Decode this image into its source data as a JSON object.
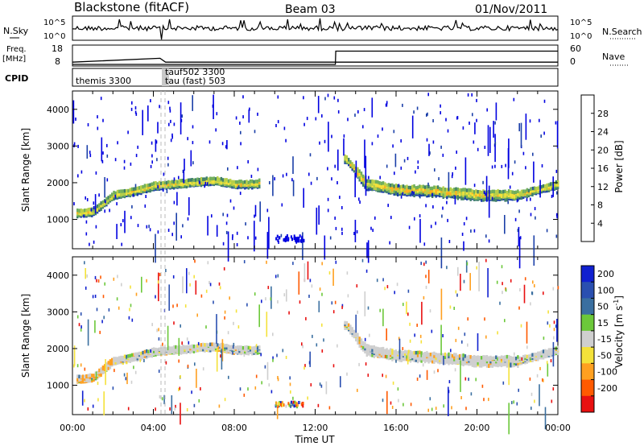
{
  "header": {
    "station": "Blackstone (fitACF)",
    "beam": "Beam 03",
    "date": "01/Nov/2011"
  },
  "top_panels": {
    "nsky_label": "N.Sky",
    "nsky_ticks": [
      "10^5",
      "10^0"
    ],
    "nsearch_label": "N.Search",
    "nsearch_ticks": [
      "10^5",
      "10^0"
    ],
    "freq_label": "Freq.",
    "freq_unit": "[MHz]",
    "freq_ticks": [
      "18",
      "8"
    ],
    "nave_label": "Nave",
    "nave_ticks": [
      "60",
      "0"
    ],
    "cpid_label": "CPID",
    "cpid_entries": [
      {
        "text": "themis 3300"
      },
      {
        "text": "tauf502 3300"
      },
      {
        "text": "tau (fast) 503"
      }
    ],
    "frequency_steps_mhz": [
      {
        "t": 0.0,
        "f": 10.0
      },
      {
        "t": 4.33,
        "f": 12.0
      },
      {
        "t": 4.6,
        "f": 10.0
      },
      {
        "t": 13.0,
        "f": 10.0
      }
    ],
    "nave_steps": [
      {
        "t": 0.0,
        "v": 0
      },
      {
        "t": 13.0,
        "v": 0
      },
      {
        "t": 13.02,
        "v": 45
      },
      {
        "t": 24.0,
        "v": 45
      }
    ]
  },
  "chart_data": [
    {
      "type": "heatmap",
      "title": "Power",
      "xlabel": "",
      "ylabel": "Slant Range [km]",
      "xlim": [
        0,
        24
      ],
      "ylim": [
        200,
        4500
      ],
      "x_ticks": [
        "00:00",
        "04:00",
        "08:00",
        "12:00",
        "16:00",
        "20:00",
        "00:00"
      ],
      "y_ticks": [
        1000,
        2000,
        3000,
        4000
      ],
      "colorbar_label": "Power [dB]",
      "colorbar_ticks": [
        4,
        8,
        12,
        16,
        20,
        24,
        28
      ],
      "colorbar_range": [
        0,
        32
      ],
      "colors": [
        "#0000e0",
        "#1b3fa8",
        "#3f7f6a",
        "#6fae5c",
        "#b6cf4a",
        "#f4e23a",
        "#ffb020",
        "#ff6a00",
        "#e81010"
      ],
      "main_band_km": [
        {
          "t": 0.0,
          "km": 1200
        },
        {
          "t": 1.0,
          "km": 1250
        },
        {
          "t": 2.0,
          "km": 1700
        },
        {
          "t": 3.0,
          "km": 1800
        },
        {
          "t": 4.0,
          "km": 1950
        },
        {
          "t": 5.0,
          "km": 2000
        },
        {
          "t": 6.0,
          "km": 2050
        },
        {
          "t": 7.0,
          "km": 2100
        },
        {
          "t": 8.0,
          "km": 2000
        },
        {
          "t": 9.0,
          "km": 2000
        },
        {
          "t": 13.5,
          "km": 2700
        },
        {
          "t": 14.5,
          "km": 2000
        },
        {
          "t": 16.0,
          "km": 1850
        },
        {
          "t": 18.0,
          "km": 1800
        },
        {
          "t": 20.0,
          "km": 1700
        },
        {
          "t": 22.0,
          "km": 1700
        },
        {
          "t": 24.0,
          "km": 2000
        }
      ]
    },
    {
      "type": "heatmap",
      "title": "Velocity",
      "xlabel": "Time UT",
      "ylabel": "Slant Range [km]",
      "xlim": [
        0,
        24
      ],
      "ylim": [
        200,
        4500
      ],
      "x_ticks": [
        "00:00",
        "04:00",
        "08:00",
        "12:00",
        "16:00",
        "20:00",
        "00:00"
      ],
      "y_ticks": [
        1000,
        2000,
        3000,
        4000
      ],
      "colorbar_label": "Velocity [m s^-1]",
      "colorbar_ticks": [
        "200",
        "100",
        "50",
        "15",
        "-15",
        "-50",
        "-100",
        "-200"
      ],
      "colors": [
        "#1020d0",
        "#2a4fb0",
        "#3a6fa0",
        "#6cc83a",
        "#cfcfcf",
        "#f4e23a",
        "#ffa020",
        "#ff5a00",
        "#e81010"
      ]
    }
  ]
}
